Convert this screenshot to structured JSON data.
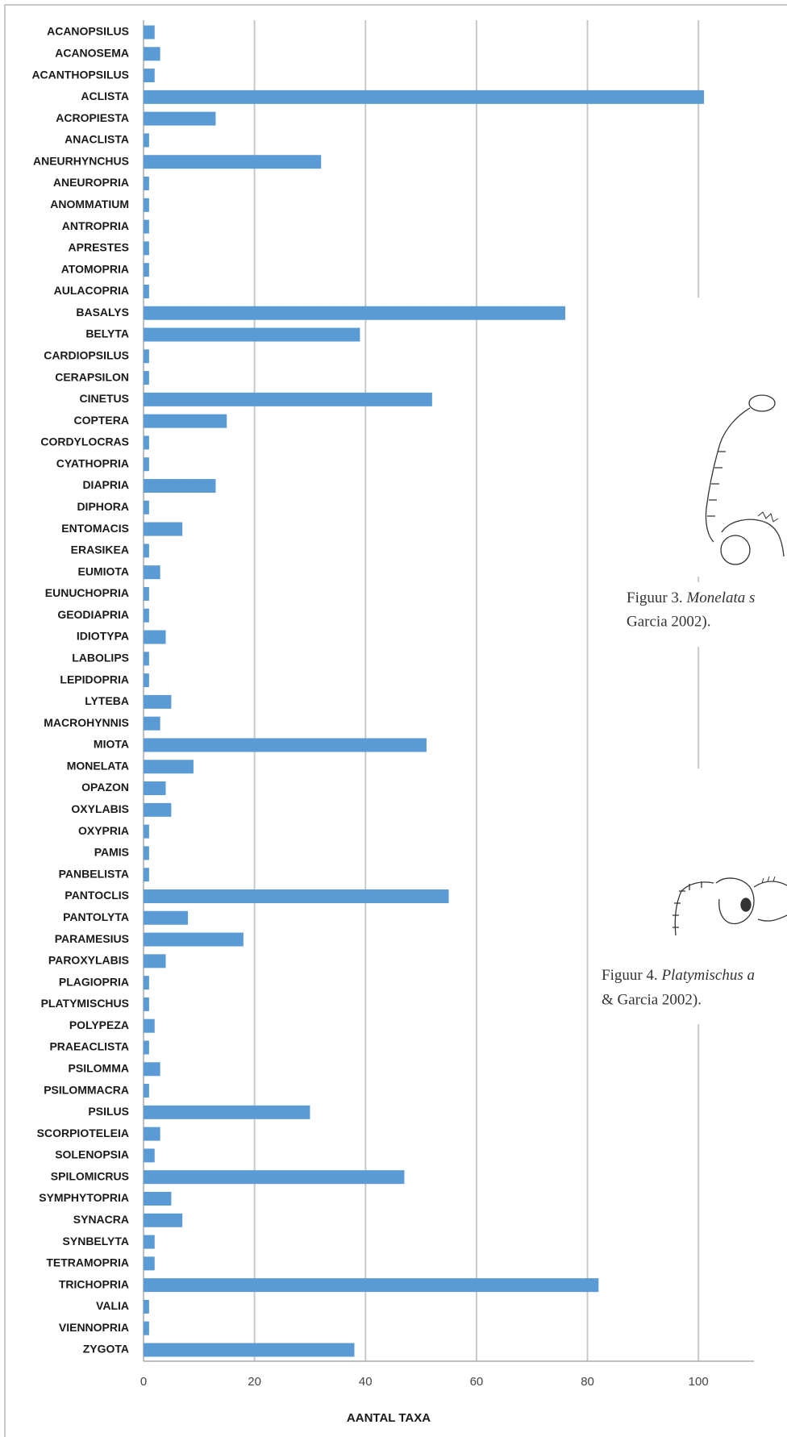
{
  "chart_data": {
    "type": "barh",
    "x_label": "AANTAL TAXA",
    "categories": [
      "ACANOPSILUS",
      "ACANOSEMA",
      "ACANTHOPSILUS",
      "ACLISTA",
      "ACROPIESTA",
      "ANACLISTA",
      "ANEURHYNCHUS",
      "ANEUROPRIA",
      "ANOMMATIUM",
      "ANTROPRIA",
      "APRESTES",
      "ATOMOPRIA",
      "AULACOPRIA",
      "BASALYS",
      "BELYTA",
      "CARDIOPSILUS",
      "CERAPSILON",
      "CINETUS",
      "COPTERA",
      "CORDYLOCRAS",
      "CYATHOPRIA",
      "DIAPRIA",
      "DIPHORA",
      "ENTOMACIS",
      "ERASIKEA",
      "EUMIOTA",
      "EUNUCHOPRIA",
      "GEODIAPRIA",
      "IDIOTYPA",
      "LABOLIPS",
      "LEPIDOPRIA",
      "LYTEBA",
      "MACROHYNNIS",
      "MIOTA",
      "MONELATA",
      "OPAZON",
      "OXYLABIS",
      "OXYPRIA",
      "PAMIS",
      "PANBELISTA",
      "PANTOCLIS",
      "PANTOLYTA",
      "PARAMESIUS",
      "PAROXYLABIS",
      "PLAGIOPRIA",
      "PLATYMISCHUS",
      "POLYPEZA",
      "PRAEACLISTA",
      "PSILOMMA",
      "PSILOMMACRA",
      "PSILUS",
      "SCORPIOTELEIA",
      "SOLENOPSIA",
      "SPILOMICRUS",
      "SYMPHYTOPRIA",
      "SYNACRA",
      "SYNBELYTA",
      "TETRAMOPRIA",
      "TRICHOPRIA",
      "VALIA",
      "VIENNOPRIA",
      "ZYGOTA"
    ],
    "values": [
      2,
      3,
      2,
      101,
      13,
      1,
      32,
      1,
      1,
      1,
      1,
      1,
      1,
      76,
      39,
      1,
      1,
      52,
      15,
      1,
      1,
      13,
      1,
      7,
      1,
      3,
      1,
      1,
      4,
      1,
      1,
      5,
      3,
      51,
      9,
      4,
      5,
      1,
      1,
      1,
      55,
      8,
      18,
      4,
      1,
      1,
      2,
      1,
      3,
      1,
      30,
      3,
      2,
      47,
      5,
      7,
      2,
      2,
      82,
      1,
      1,
      38
    ],
    "color": "#5b9bd5",
    "xlim": [
      0,
      110
    ],
    "xticks": [
      0,
      20,
      40,
      60,
      80,
      100
    ],
    "grid": true
  },
  "figures": [
    {
      "label": "Figuur 3.",
      "italic": "Monelata s",
      "line2": "Garcia 2002)."
    },
    {
      "label": "Figuur 4.",
      "italic": "Platymischus a",
      "line2": "& Garcia 2002)."
    }
  ]
}
